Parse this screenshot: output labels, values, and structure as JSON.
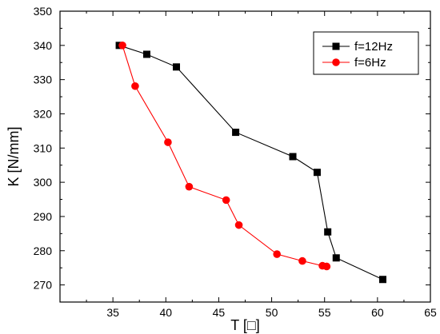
{
  "chart_data": {
    "type": "line",
    "title": "",
    "xlabel": "T [□]",
    "ylabel": "K [N/mm]",
    "xlim": [
      30,
      65
    ],
    "ylim": [
      265,
      350
    ],
    "xticks": [
      35,
      40,
      45,
      50,
      55,
      60,
      65
    ],
    "yticks": [
      270,
      280,
      290,
      300,
      310,
      320,
      330,
      340,
      350
    ],
    "legend_position": "top-right",
    "grid": false,
    "series": [
      {
        "name": "f=12Hz",
        "color": "#000000",
        "marker": "square",
        "x": [
          35.6,
          38.2,
          41.0,
          46.6,
          52.0,
          54.3,
          55.3,
          56.1,
          60.5
        ],
        "y": [
          340.0,
          337.4,
          333.7,
          314.6,
          307.5,
          302.9,
          285.5,
          277.9,
          271.6
        ]
      },
      {
        "name": "f=6Hz",
        "color": "#ff0000",
        "marker": "circle",
        "x": [
          35.9,
          37.1,
          40.2,
          42.2,
          45.7,
          46.9,
          50.5,
          52.9,
          54.8,
          55.2
        ],
        "y": [
          340.0,
          328.1,
          311.7,
          298.7,
          294.8,
          287.5,
          279.0,
          277.0,
          275.6,
          275.4
        ]
      }
    ]
  }
}
